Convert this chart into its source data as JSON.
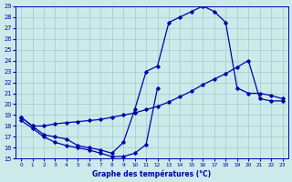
{
  "xlabel": "Graphe des températures (°C)",
  "background_color": "#cceaea",
  "line_color": "#0000aa",
  "grid_color": "#99cccc",
  "ylim": [
    15,
    29
  ],
  "xlim": [
    -0.5,
    23.5
  ],
  "yticks": [
    15,
    16,
    17,
    18,
    19,
    20,
    21,
    22,
    23,
    24,
    25,
    26,
    27,
    28,
    29
  ],
  "xticks": [
    0,
    1,
    2,
    3,
    4,
    5,
    6,
    7,
    8,
    9,
    10,
    11,
    12,
    13,
    14,
    15,
    16,
    17,
    18,
    19,
    20,
    21,
    22,
    23
  ],
  "curve1_x": [
    0,
    1,
    2,
    3,
    4,
    5,
    6,
    7,
    8,
    9,
    10,
    11,
    12
  ],
  "curve1_y": [
    18.5,
    17.8,
    17.0,
    16.5,
    16.2,
    16.0,
    15.8,
    15.5,
    15.2,
    15.2,
    15.5,
    16.3,
    21.5
  ],
  "curve2_x": [
    0,
    1,
    2,
    3,
    4,
    5,
    6,
    7,
    8,
    9,
    10,
    11,
    12,
    13,
    14,
    15,
    16,
    17,
    18,
    19,
    20,
    21,
    22,
    23
  ],
  "curve2_y": [
    18.8,
    18.0,
    18.0,
    18.2,
    18.3,
    18.4,
    18.5,
    18.6,
    18.8,
    19.0,
    19.2,
    19.5,
    19.8,
    20.2,
    20.7,
    21.2,
    21.8,
    22.3,
    22.8,
    23.4,
    24.0,
    20.5,
    20.3,
    20.3
  ],
  "curve3_x": [
    0,
    1,
    2,
    3,
    4,
    5,
    6,
    7,
    8,
    9,
    10,
    11,
    12,
    13,
    14,
    15,
    16,
    17,
    18,
    19,
    20,
    21,
    22,
    23
  ],
  "curve3_y": [
    18.8,
    18.0,
    17.2,
    17.0,
    16.8,
    16.2,
    16.0,
    15.8,
    15.5,
    16.5,
    19.5,
    23.0,
    23.5,
    27.5,
    28.0,
    28.5,
    29.0,
    28.5,
    27.5,
    21.5,
    21.0,
    21.0,
    20.8,
    20.5
  ]
}
